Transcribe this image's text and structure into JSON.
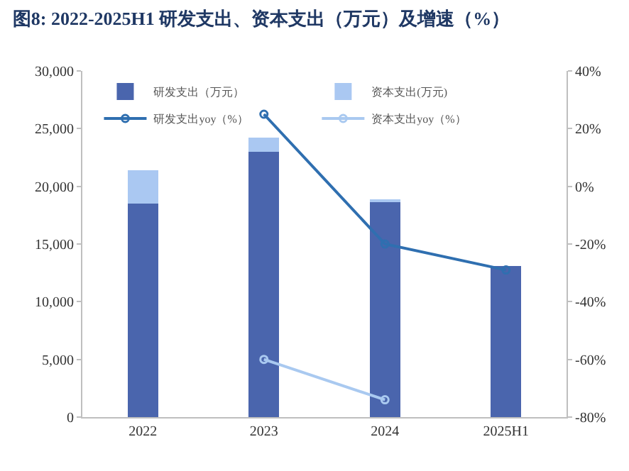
{
  "chart_data": {
    "type": "bar",
    "title": "图8: 2022-2025H1 研发支出、资本支出（万元）及增速（%）",
    "categories": [
      "2022",
      "2023",
      "2024",
      "2025H1"
    ],
    "stacked": true,
    "series": [
      {
        "name": "研发支出（万元）",
        "color": "#4a65ad",
        "values": [
          18500,
          23000,
          18600,
          13100
        ]
      },
      {
        "name": "资本支出(万元)",
        "color": "#aac8f2",
        "values": [
          2900,
          1200,
          300,
          null
        ]
      },
      {
        "name": "研发支出yoy（%）",
        "type": "line",
        "axis": "y2",
        "color": "#2f6fb0",
        "values": [
          null,
          25,
          -20,
          -29
        ]
      },
      {
        "name": "资本支出yoy（%）",
        "type": "line",
        "axis": "y2",
        "color": "#a9c9f0",
        "values": [
          null,
          -60,
          -74,
          null
        ]
      }
    ],
    "ylim": [
      0,
      30000
    ],
    "yticks": [
      {
        "value": 0,
        "label": "0"
      },
      {
        "value": 5000,
        "label": "5,000"
      },
      {
        "value": 10000,
        "label": "10,000"
      },
      {
        "value": 15000,
        "label": "15,000"
      },
      {
        "value": 20000,
        "label": "20,000"
      },
      {
        "value": 25000,
        "label": "25,000"
      },
      {
        "value": 30000,
        "label": "30,000"
      }
    ],
    "y2lim": [
      -80,
      40
    ],
    "y2ticks": [
      {
        "value": -80,
        "label": "-80%"
      },
      {
        "value": -60,
        "label": "-60%"
      },
      {
        "value": -40,
        "label": "-40%"
      },
      {
        "value": -20,
        "label": "-20%"
      },
      {
        "value": 0,
        "label": "0%"
      },
      {
        "value": 20,
        "label": "20%"
      },
      {
        "value": 40,
        "label": "40%"
      }
    ],
    "legend": "top",
    "marker": "circle",
    "line_style": "solid"
  }
}
